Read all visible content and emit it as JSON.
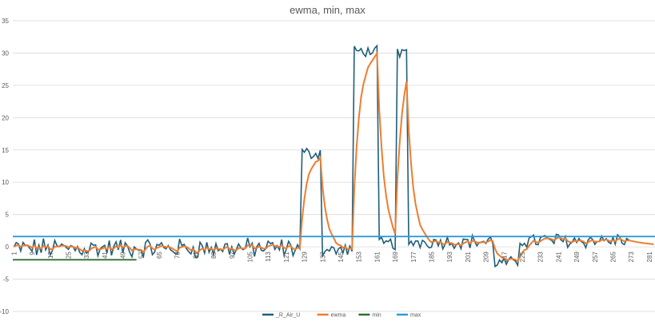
{
  "chart_data": {
    "type": "line",
    "title": "ewma, min, max",
    "xlabel": "",
    "ylabel": "",
    "ylim": [
      -10,
      35
    ],
    "yticks": [
      -10,
      -5,
      0,
      5,
      10,
      15,
      20,
      25,
      30,
      35
    ],
    "x_count": 283,
    "x_tick_labels": [
      "1",
      "9",
      "17",
      "25",
      "33",
      "41",
      "49",
      "57",
      "65",
      "73",
      "81",
      "89",
      "97",
      "105",
      "113",
      "121",
      "129",
      "137",
      "145",
      "153",
      "161",
      "169",
      "177",
      "185",
      "193",
      "201",
      "209",
      "217",
      "225",
      "233",
      "241",
      "249",
      "257",
      "265",
      "273",
      "281"
    ],
    "grid": true,
    "legend_position": "bottom",
    "series": [
      {
        "name": "_R_Air_U",
        "color": "#1f5f7a",
        "segments": [
          {
            "start": 0,
            "end": 127,
            "level": -0.2,
            "noise": 1.3
          },
          {
            "start": 127,
            "end": 136,
            "level": 14.5,
            "noise": 0.8
          },
          {
            "start": 136,
            "end": 150,
            "level": -0.5,
            "noise": 0.9
          },
          {
            "start": 150,
            "end": 161,
            "level": 30.3,
            "noise": 0.7
          },
          {
            "start": 161,
            "end": 169,
            "level": 0.5,
            "noise": 0.9
          },
          {
            "start": 169,
            "end": 174,
            "level": 29.8,
            "noise": 0.9
          },
          {
            "start": 174,
            "end": 212,
            "level": 0.8,
            "noise": 0.9
          },
          {
            "start": 212,
            "end": 223,
            "level": -2.5,
            "noise": 0.8
          },
          {
            "start": 223,
            "end": 272,
            "level": 1.0,
            "noise": 1.0
          }
        ]
      },
      {
        "name": "ewma",
        "color": "#ed7d31",
        "alpha": 0.3,
        "end_index": 283
      },
      {
        "name": "min",
        "color": "#2f6f2f",
        "constant": -2.0
      },
      {
        "name": "max",
        "color": "#2e9bd6",
        "constant": 1.6
      }
    ]
  }
}
